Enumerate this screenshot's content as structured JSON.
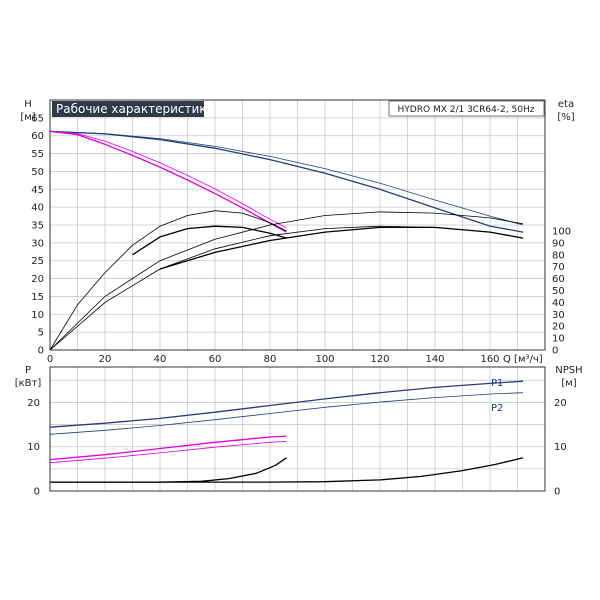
{
  "chart_data": [
    {
      "type": "line",
      "title": "Рабочие характеристики",
      "model": "HYDRO MX 2/1 3CR64-2, 50Hz",
      "xlabel": "Q [м³/ч]",
      "ylabel_left": "H",
      "ylabel_left_unit": "[м]",
      "ylabel_right": "eta",
      "ylabel_right_unit": "[%]",
      "xlim": [
        0,
        180
      ],
      "xticks": [
        0,
        20,
        40,
        60,
        80,
        100,
        120,
        140,
        160
      ],
      "ylim_left": [
        0,
        70
      ],
      "yticks_left": [
        0,
        5,
        10,
        15,
        20,
        25,
        30,
        35,
        40,
        45,
        50,
        55,
        60,
        65
      ],
      "ylim_right": [
        0,
        210
      ],
      "yticks_right": [
        0,
        10,
        20,
        30,
        40,
        50,
        60,
        70,
        80,
        90,
        100
      ],
      "grid": true,
      "series": [
        {
          "axis": "left",
          "color": "#1f3f7a",
          "width": 1.3,
          "x": [
            0,
            20,
            40,
            60,
            80,
            100,
            120,
            140,
            160,
            172
          ],
          "y": [
            61.2,
            60.5,
            58.9,
            56.5,
            53.3,
            49.5,
            45.0,
            39.8,
            34.7,
            33.0
          ]
        },
        {
          "axis": "left",
          "color": "#1f3f7a",
          "width": 0.8,
          "x": [
            0,
            20,
            40,
            60,
            80,
            100,
            120,
            140,
            160,
            172
          ],
          "y": [
            61.2,
            60.6,
            59.2,
            57.0,
            54.2,
            50.8,
            46.7,
            42.0,
            37.5,
            35.0
          ]
        },
        {
          "axis": "left",
          "color": "#e000e0",
          "width": 1.3,
          "x": [
            0,
            10,
            20,
            30,
            40,
            50,
            60,
            70,
            80,
            86
          ],
          "y": [
            61.2,
            60.3,
            57.6,
            54.5,
            51.2,
            47.6,
            43.8,
            39.8,
            35.5,
            33.0
          ]
        },
        {
          "axis": "left",
          "color": "#e000e0",
          "width": 0.8,
          "x": [
            0,
            10,
            20,
            30,
            40,
            50,
            60,
            70,
            80,
            86
          ],
          "y": [
            61.2,
            60.6,
            58.5,
            55.6,
            52.4,
            48.9,
            45.1,
            41.0,
            36.6,
            34.2
          ]
        },
        {
          "axis": "right",
          "color": "#000000",
          "width": 0.8,
          "x": [
            0,
            10,
            20,
            30,
            40,
            50,
            60,
            70,
            80,
            86
          ],
          "y": [
            0,
            38,
            65,
            88,
            104,
            113,
            117,
            115,
            107,
            100
          ]
        },
        {
          "axis": "right",
          "color": "#000000",
          "width": 1.3,
          "x": [
            30,
            40,
            50,
            60,
            70,
            80,
            86
          ],
          "y": [
            80,
            95,
            102,
            104,
            103,
            98,
            94
          ]
        },
        {
          "axis": "right",
          "color": "#000000",
          "width": 0.8,
          "x": [
            0,
            20,
            40,
            60,
            80,
            100,
            120,
            140,
            160,
            172
          ],
          "y": [
            0,
            45,
            75,
            93,
            105,
            113,
            116,
            115,
            111,
            106
          ]
        },
        {
          "axis": "right",
          "color": "#000000",
          "width": 0.8,
          "x": [
            0,
            20,
            40,
            60,
            80,
            100,
            120,
            140,
            160,
            172
          ],
          "y": [
            0,
            40,
            68,
            85,
            96,
            102,
            104,
            103,
            99,
            94
          ]
        },
        {
          "axis": "right",
          "color": "#000000",
          "width": 1.3,
          "x": [
            40,
            60,
            80,
            100,
            120,
            140,
            160,
            172
          ],
          "y": [
            68,
            82,
            92,
            99,
            103,
            103,
            99,
            94
          ]
        }
      ]
    },
    {
      "type": "line",
      "xlabel": "",
      "ylabel_left": "P",
      "ylabel_left_unit": "[кВт]",
      "ylabel_right": "NPSH",
      "ylabel_right_unit": "[м]",
      "xlim": [
        0,
        180
      ],
      "ylim_left": [
        0,
        28
      ],
      "yticks_left": [
        0,
        10,
        20
      ],
      "ylim_right": [
        0,
        28
      ],
      "yticks_right": [
        0,
        10,
        20
      ],
      "grid": true,
      "series": [
        {
          "name": "P1",
          "axis": "left",
          "color": "#1f3f7a",
          "width": 1.3,
          "x": [
            0,
            20,
            40,
            60,
            80,
            100,
            120,
            140,
            160,
            172
          ],
          "y": [
            14.4,
            15.3,
            16.4,
            17.8,
            19.3,
            20.8,
            22.2,
            23.4,
            24.3,
            24.8
          ]
        },
        {
          "name": "P2",
          "axis": "left",
          "color": "#1f3f7a",
          "width": 0.8,
          "x": [
            0,
            20,
            40,
            60,
            80,
            100,
            120,
            140,
            160,
            172
          ],
          "y": [
            12.8,
            13.7,
            14.8,
            16.1,
            17.5,
            18.9,
            20.1,
            21.1,
            21.9,
            22.2
          ]
        },
        {
          "axis": "left",
          "color": "#e000e0",
          "width": 1.3,
          "x": [
            0,
            20,
            40,
            60,
            80,
            86
          ],
          "y": [
            7.1,
            8.2,
            9.6,
            11.0,
            12.2,
            12.4
          ]
        },
        {
          "axis": "left",
          "color": "#e000e0",
          "width": 0.8,
          "x": [
            0,
            20,
            40,
            60,
            80,
            86
          ],
          "y": [
            6.4,
            7.4,
            8.6,
            9.9,
            11.0,
            11.2
          ]
        },
        {
          "axis": "right",
          "color": "#000000",
          "width": 1.3,
          "x": [
            0,
            40,
            55,
            65,
            75,
            82,
            86
          ],
          "y": [
            2.0,
            2.0,
            2.2,
            2.8,
            4.0,
            5.8,
            7.5
          ]
        },
        {
          "axis": "right",
          "color": "#000000",
          "width": 1.3,
          "x": [
            0,
            80,
            100,
            120,
            135,
            150,
            162,
            172
          ],
          "y": [
            2.0,
            2.0,
            2.1,
            2.5,
            3.3,
            4.6,
            6.0,
            7.5
          ]
        }
      ],
      "legend": [
        {
          "label": "P1",
          "color": "#1f3f7a"
        },
        {
          "label": "P2",
          "color": "#1f3f7a"
        }
      ]
    }
  ]
}
